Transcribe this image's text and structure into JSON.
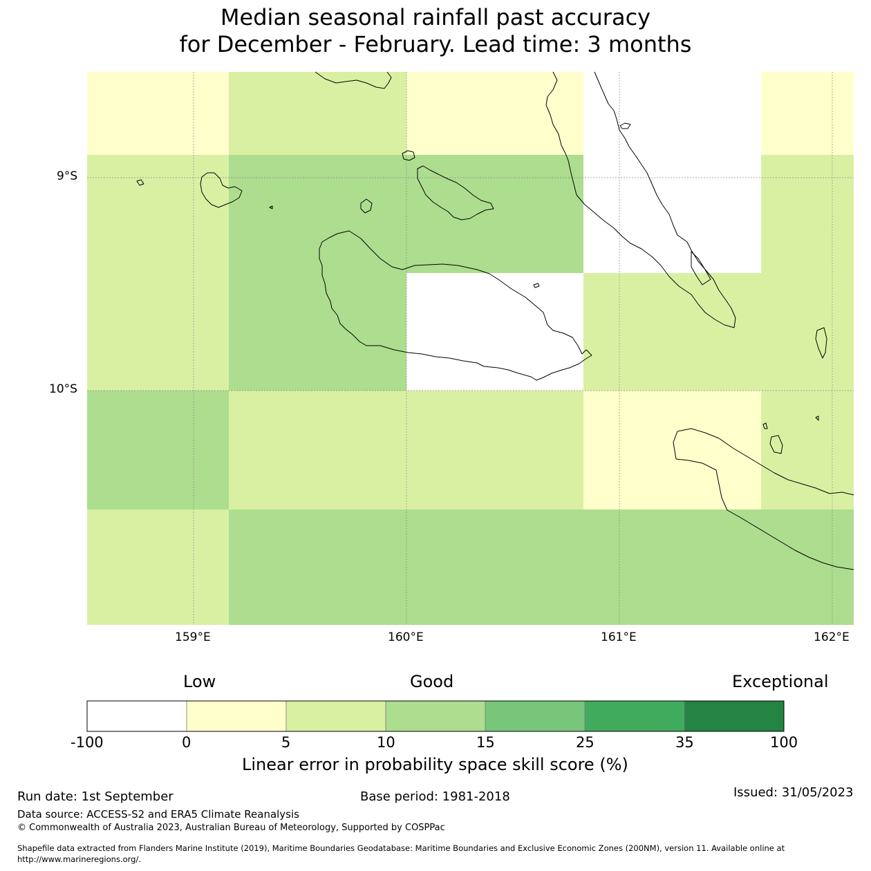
{
  "title": {
    "line1": "Median seasonal rainfall past accuracy",
    "line2": "for December - February. Lead time: 3 months"
  },
  "map": {
    "lat_labels": [
      "9°S",
      "10°S"
    ],
    "lon_labels": [
      "159°E",
      "160°E",
      "161°E",
      "162°E"
    ],
    "grid": true,
    "cell_colors": {
      "no_skill": "#ffffff",
      "c0_5": "#ffffcc",
      "c5_10": "#d9f0a3",
      "c10_15": "#addd8e"
    }
  },
  "colorbar": {
    "qualitative": [
      "Low",
      "Good",
      "Exceptional"
    ],
    "ticks": [
      "-100",
      "0",
      "5",
      "10",
      "15",
      "25",
      "35",
      "100"
    ],
    "colors": [
      "#ffffff",
      "#ffffcc",
      "#d9f0a3",
      "#addd8e",
      "#78c679",
      "#41ab5d",
      "#238443"
    ],
    "label": "Linear error in probability space skill score (%)"
  },
  "footer": {
    "run_date": "Run date: 1st September",
    "base_period": "Base period: 1981-2018",
    "issued": "Issued: 31/05/2023",
    "data_source": "Data source: ACCESS-S2 and ERA5 Climate Reanalysis",
    "copyright": "© Commonwealth of Australia 2023, Australian Bureau of Meteorology, Supported by COSPPac",
    "shapefile_1": "Shapefile data extracted from Flanders Marine Institute (2019), Maritime Boundaries Geodatabase: Maritime Boundaries and Exclusive Economic Zones (200NM), version 11. Available online at",
    "shapefile_2": "http://www.marineregions.org/."
  }
}
